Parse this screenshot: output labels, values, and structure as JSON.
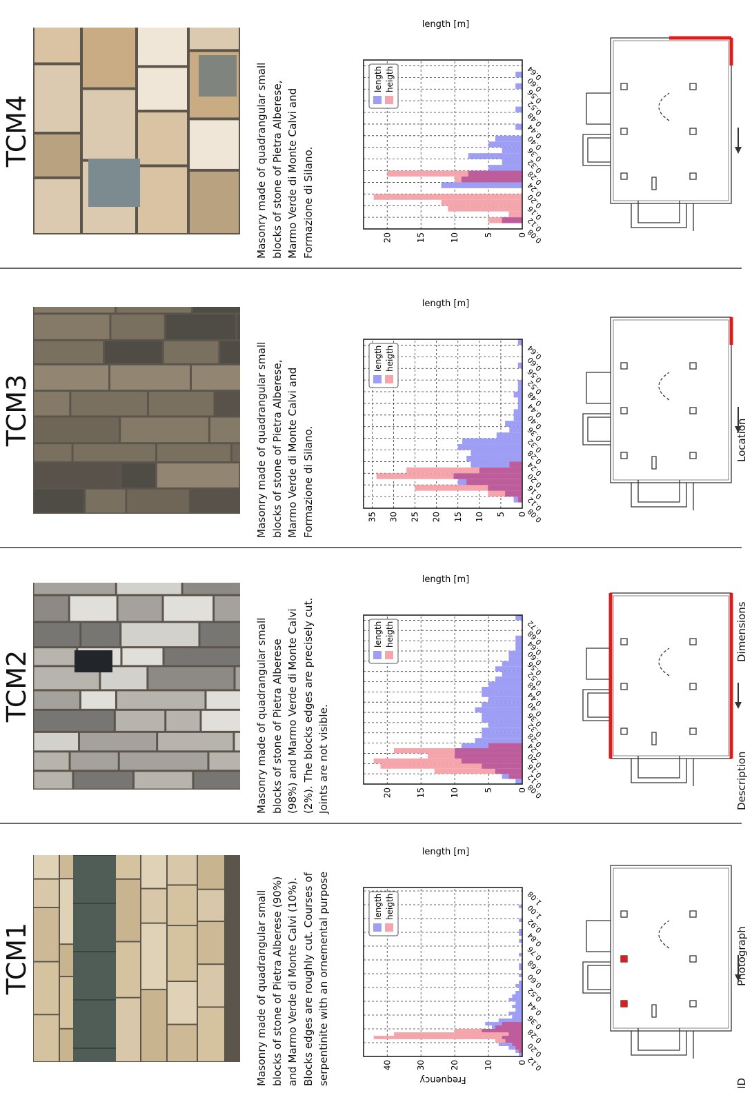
{
  "row_labels": {
    "id": "ID",
    "photograph": "Photograph",
    "description": "Description",
    "dimensions": "Dimensions",
    "location": "Location"
  },
  "legend": {
    "length": "length",
    "height": "heigth"
  },
  "colors": {
    "length_bar": "#9e9ef5",
    "height_bar": "#f5a6ad",
    "overlap": "#bd5d9c",
    "location_highlight": "#e01b1b"
  },
  "columns": [
    {
      "id": "TCM1",
      "photo_texture": "light-stone-with-dark-serpentinite-band",
      "description": [
        "Masonry made of quadrangular small",
        "blocks of stone of Pietra Alberese (90%)",
        "and Marmo Verde di Monte Calvi (10%).",
        "Blocks edges are roughly cut. Courses of",
        "serpentinite with an ornemental purpose"
      ],
      "location_highlight": "two interior pillars"
    },
    {
      "id": "TCM2",
      "photo_texture": "grey-white-elongated-blocks",
      "description": [
        "Masonry made of quadrangular small",
        "blocks of stone of Pietra Alberese",
        "(98%)  and Marmo Verde di Monte Calvi",
        "(2%). The blocks edges are precisely cut.",
        "Joints are not visible."
      ],
      "location_highlight": "side walls"
    },
    {
      "id": "TCM3",
      "photo_texture": "dark-grey-brown-blocks",
      "description": [
        "Masonry made of quadrangular small",
        "blocks of stone of Pietra Alberese,",
        "Marmo Verde di Monte Calvi and",
        "Formazione di Silano."
      ],
      "location_highlight": "facade corner"
    },
    {
      "id": "TCM4",
      "photo_texture": "light-beige-mixed-blocks",
      "description": [
        "Masonry made of quadrangular small",
        "blocks of stone of Pietra Alberese,",
        "Marmo Verde di Monte Calvi and",
        "Formazione di Silano."
      ],
      "location_highlight": "facade"
    }
  ],
  "chart_data": [
    {
      "type": "bar",
      "id": "TCM1",
      "xlabel": "length [m]",
      "ylabel": "Frequency",
      "bin_start": 0.12,
      "bin_width": 0.02,
      "xlim": [
        0.12,
        1.1
      ],
      "ylim": [
        0,
        47
      ],
      "xticks": [
        "0.12",
        "0.20",
        "0.28",
        "0.36",
        "0.44",
        "0.52",
        "0.60",
        "0.68",
        "0.76",
        "0.84",
        "0.92",
        "1.00",
        "1.08"
      ],
      "yticks": [
        0,
        10,
        20,
        30,
        40
      ],
      "series": [
        {
          "name": "length",
          "values": [
            1,
            2,
            4,
            7,
            5,
            6,
            4,
            12,
            9,
            11,
            7,
            3,
            4,
            2,
            3,
            2,
            4,
            3,
            2,
            1,
            2,
            1,
            0,
            1,
            0,
            1,
            1,
            0,
            0,
            1,
            0,
            0,
            0,
            1,
            0,
            1,
            1,
            0,
            0,
            1,
            0,
            0,
            0,
            1,
            0,
            0,
            0,
            0,
            0
          ]
        },
        {
          "name": "heigth",
          "values": [
            0,
            1,
            2,
            3,
            8,
            44,
            38,
            20,
            8,
            6,
            0,
            0,
            0,
            0,
            0,
            0,
            0,
            0,
            0,
            0,
            0,
            0,
            0,
            0,
            0,
            0,
            0,
            0,
            0,
            0,
            0,
            0,
            0,
            0,
            0,
            0,
            0,
            0,
            0,
            0,
            0,
            0,
            0,
            0,
            0,
            0,
            0,
            0,
            0
          ]
        }
      ]
    },
    {
      "type": "bar",
      "id": "TCM2",
      "xlabel": "length [m]",
      "ylabel": "",
      "bin_start": 0.08,
      "bin_width": 0.02,
      "xlim": [
        0.08,
        0.74
      ],
      "ylim": [
        0,
        23.5
      ],
      "xticks": [
        "0.08",
        "0.12",
        "0.16",
        "0.20",
        "0.24",
        "0.28",
        "0.32",
        "0.36",
        "0.40",
        "0.44",
        "0.48",
        "0.52",
        "0.56",
        "0.60",
        "0.64",
        "0.68",
        "0.72"
      ],
      "yticks": [
        0,
        5,
        10,
        15,
        20
      ],
      "series": [
        {
          "name": "length",
          "values": [
            1,
            3,
            4,
            6,
            9,
            10,
            10,
            9,
            7,
            6,
            6,
            5,
            6,
            6,
            7,
            6,
            5,
            6,
            6,
            5,
            4,
            3,
            4,
            3,
            2,
            2,
            1,
            1,
            1,
            0,
            0,
            0,
            1
          ]
        },
        {
          "name": "heigth",
          "values": [
            0,
            2,
            13,
            21,
            22,
            14,
            19,
            5,
            0,
            0,
            0,
            0,
            0,
            0,
            0,
            0,
            0,
            0,
            0,
            0,
            0,
            0,
            0,
            0,
            0,
            0,
            0,
            0,
            0,
            0,
            0,
            0,
            0
          ]
        }
      ]
    },
    {
      "type": "bar",
      "id": "TCM3",
      "xlabel": "length [m]",
      "ylabel": "",
      "bin_start": 0.08,
      "bin_width": 0.02,
      "xlim": [
        0.08,
        0.66
      ],
      "ylim": [
        0,
        37
      ],
      "xticks": [
        "0.08",
        "0.12",
        "0.16",
        "0.20",
        "0.24",
        "0.28",
        "0.32",
        "0.36",
        "0.40",
        "0.44",
        "0.48",
        "0.52",
        "0.56",
        "0.60",
        "0.64"
      ],
      "yticks": [
        0,
        5,
        10,
        15,
        20,
        25,
        30,
        35
      ],
      "series": [
        {
          "name": "length",
          "values": [
            0,
            2,
            4,
            8,
            15,
            16,
            10,
            12,
            13,
            12,
            15,
            14,
            6,
            3,
            4,
            2,
            2,
            1,
            1,
            2,
            1,
            1,
            0,
            0,
            1,
            0,
            0,
            0,
            1
          ]
        },
        {
          "name": "heigth",
          "values": [
            0,
            1,
            8,
            25,
            13,
            34,
            27,
            3,
            0,
            0,
            0,
            0,
            0,
            0,
            0,
            0,
            0,
            0,
            0,
            0,
            0,
            0,
            0,
            0,
            0,
            0,
            0,
            0,
            0
          ]
        }
      ]
    },
    {
      "type": "bar",
      "id": "TCM4",
      "xlabel": "length [m]",
      "ylabel": "",
      "bin_start": 0.08,
      "bin_width": 0.02,
      "xlim": [
        0.08,
        0.66
      ],
      "ylim": [
        0,
        23.5
      ],
      "xticks": [
        "0.08",
        "0.12",
        "0.16",
        "0.20",
        "0.24",
        "0.28",
        "0.32",
        "0.36",
        "0.40",
        "0.44",
        "0.48",
        "0.52",
        "0.56",
        "0.60",
        "0.64"
      ],
      "yticks": [
        0,
        5,
        10,
        15,
        20
      ],
      "series": [
        {
          "name": "length",
          "values": [
            0,
            3,
            0,
            0,
            0,
            0,
            0,
            12,
            9,
            8,
            5,
            3,
            8,
            3,
            5,
            4,
            0,
            1,
            0,
            0,
            1,
            0,
            0,
            0,
            1,
            0,
            1,
            0,
            0
          ]
        },
        {
          "name": "heigth",
          "values": [
            0,
            5,
            2,
            11,
            12,
            22,
            0,
            0,
            10,
            20,
            0,
            0,
            0,
            0,
            0,
            0,
            0,
            0,
            0,
            0,
            0,
            0,
            0,
            0,
            0,
            0,
            0,
            0,
            0
          ]
        }
      ]
    }
  ]
}
